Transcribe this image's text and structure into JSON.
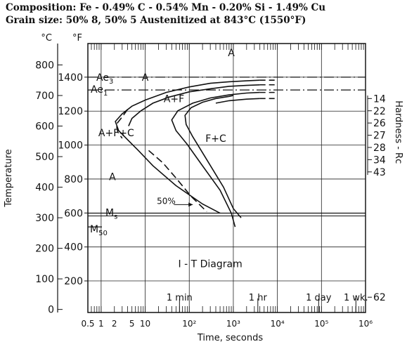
{
  "header": {
    "composition": "Composition: Fe - 0.49% C - 0.54% Mn - 0.20% Si - 1.49% Cu",
    "grain": "Grain size: 50% 8, 50% 5 Austenitized at 843°C (1550°F)"
  },
  "chart_data": {
    "type": "line",
    "title": "I - T Diagram",
    "xlabel": "Time, seconds",
    "ylabel": "Temperature",
    "y2label": "Hardness - Rc",
    "x_scale": "log",
    "xlim": [
      0.5,
      1000000
    ],
    "x_ticks": [
      {
        "value": 0.5,
        "label": "0.5"
      },
      {
        "value": 1,
        "label": "1"
      },
      {
        "value": 2,
        "label": "2"
      },
      {
        "value": 5,
        "label": "5"
      },
      {
        "value": 10,
        "label": "10"
      },
      {
        "value": 100,
        "label": "10²"
      },
      {
        "value": 1000,
        "label": "10³"
      },
      {
        "value": 10000,
        "label": "10⁴"
      },
      {
        "value": 100000,
        "label": "10⁵"
      },
      {
        "value": 1000000,
        "label": "10⁶"
      }
    ],
    "y_unit_c": "°C",
    "y_unit_f": "°F",
    "ylim_c": [
      -10,
      870
    ],
    "celsius_ticks": [
      0,
      100,
      200,
      300,
      400,
      500,
      600,
      700,
      800
    ],
    "fahrenheit_ticks": [
      200,
      400,
      600,
      800,
      1000,
      1200,
      1400
    ],
    "time_markers": [
      {
        "value": 60,
        "label": "1 min"
      },
      {
        "value": 3600,
        "label": "1 hr"
      },
      {
        "value": 86400,
        "label": "1 day"
      },
      {
        "value": 604800,
        "label": "1 wk."
      }
    ],
    "hardness": [
      {
        "value": "14",
        "c": 690
      },
      {
        "value": "22",
        "c": 650
      },
      {
        "value": "26",
        "c": 610
      },
      {
        "value": "27",
        "c": 570
      },
      {
        "value": "28",
        "c": 530
      },
      {
        "value": "34",
        "c": 490
      },
      {
        "value": "43",
        "c": 450
      },
      {
        "value": "62",
        "c": 40
      }
    ],
    "lines": [
      {
        "name": "Ae3",
        "label": "Ae3",
        "c": 760
      },
      {
        "name": "Ae1",
        "label": "Ae1",
        "c": 718
      },
      {
        "name": "Ms",
        "label": "Ms",
        "c": 315
      },
      {
        "name": "M50",
        "label": "M50",
        "c": 270
      }
    ],
    "regions": [
      {
        "label": "A",
        "x": 900,
        "c": 840
      },
      {
        "label": "A",
        "x": 10,
        "c": 760
      },
      {
        "label": "A+F",
        "x": 45,
        "c": 690
      },
      {
        "label": "A+F+C",
        "x": 2.2,
        "c": 578
      },
      {
        "label": "F+C",
        "x": 400,
        "c": 560
      },
      {
        "label": "A",
        "x": 1.8,
        "c": 435
      }
    ],
    "annotation_50": "50%",
    "series": [
      {
        "points": [
          [
            4000,
            750
          ],
          [
            2000,
            748
          ],
          [
            800,
            745
          ],
          [
            300,
            740
          ],
          [
            100,
            728
          ],
          [
            30,
            710
          ],
          [
            10,
            685
          ],
          [
            5,
            665
          ],
          [
            3,
            640
          ],
          [
            2.1,
            615
          ],
          [
            2.5,
            585
          ],
          [
            4,
            555
          ],
          [
            7,
            520
          ],
          [
            15,
            470
          ],
          [
            50,
            405
          ],
          [
            200,
            345
          ],
          [
            500,
            315
          ]
        ]
      },
      {
        "points": [
          [
            4000,
            735
          ],
          [
            2000,
            733
          ],
          [
            800,
            730
          ],
          [
            300,
            722
          ],
          [
            100,
            712
          ],
          [
            35,
            695
          ],
          [
            15,
            675
          ],
          [
            8,
            650
          ],
          [
            5,
            625
          ],
          [
            4.2,
            600
          ]
        ]
      },
      {
        "points": [
          [
            4000,
            710
          ],
          [
            2000,
            708
          ],
          [
            800,
            702
          ],
          [
            300,
            692
          ],
          [
            120,
            675
          ],
          [
            55,
            650
          ],
          [
            40,
            620
          ],
          [
            50,
            585
          ],
          [
            90,
            540
          ],
          [
            200,
            470
          ],
          [
            500,
            390
          ],
          [
            900,
            315
          ],
          [
            1100,
            270
          ]
        ]
      },
      {
        "points": [
          [
            4000,
            690
          ],
          [
            2000,
            688
          ],
          [
            800,
            683
          ],
          [
            400,
            675
          ]
        ]
      },
      {
        "points": [
          [
            1000,
            700
          ],
          [
            800,
            697
          ],
          [
            400,
            690
          ],
          [
            200,
            678
          ],
          [
            110,
            660
          ],
          [
            80,
            635
          ],
          [
            85,
            605
          ],
          [
            120,
            565
          ],
          [
            250,
            490
          ],
          [
            600,
            400
          ],
          [
            1000,
            330
          ],
          [
            1500,
            300
          ]
        ]
      }
    ],
    "dashed_series": [
      {
        "points": [
          [
            4,
            655
          ],
          [
            3,
            630
          ],
          [
            2.2,
            605
          ],
          [
            2.4,
            580
          ],
          [
            3,
            560
          ]
        ]
      },
      {
        "points": [
          [
            12,
            520
          ],
          [
            25,
            480
          ],
          [
            50,
            430
          ],
          [
            110,
            370
          ],
          [
            250,
            320
          ]
        ]
      }
    ],
    "grid": true
  }
}
